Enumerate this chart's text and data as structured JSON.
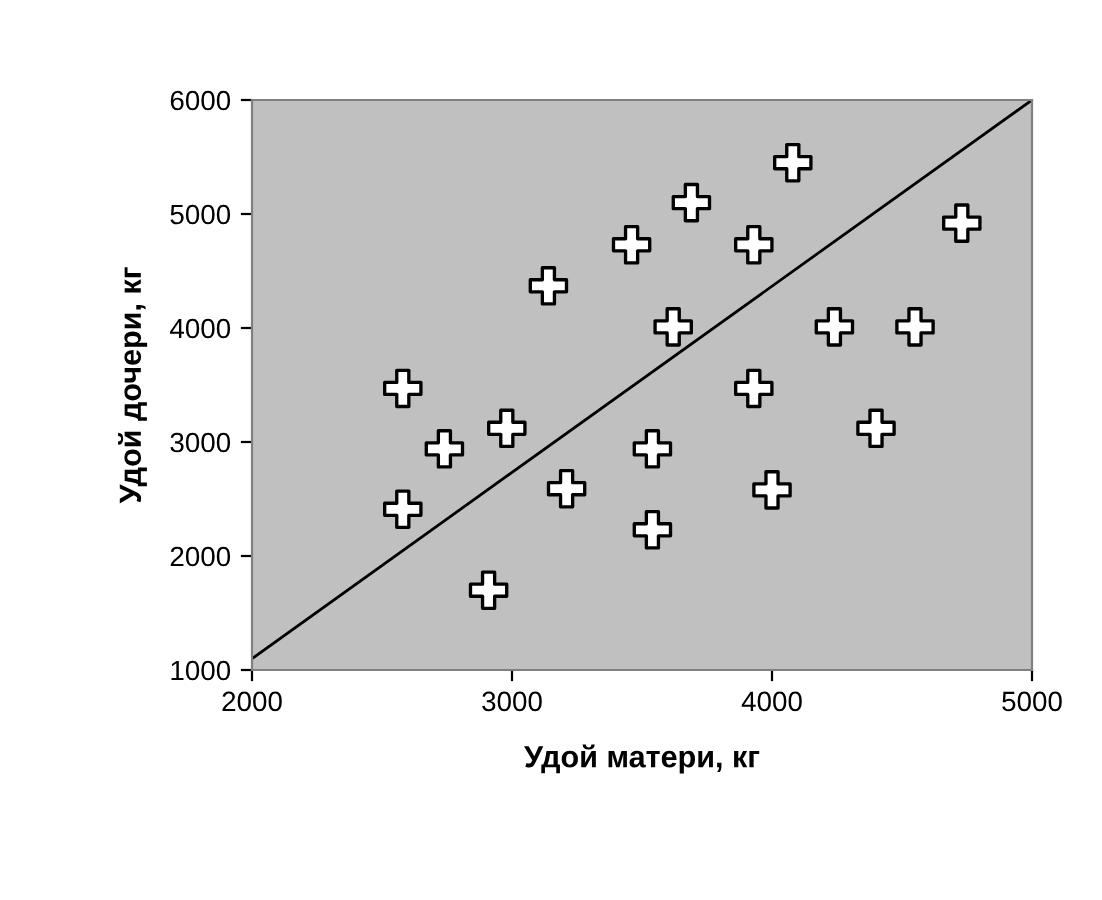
{
  "chart_data": {
    "type": "scatter",
    "xlabel": "Удой матери, кг",
    "ylabel": "Удой дочери, кг",
    "xlim": [
      2000,
      5000
    ],
    "ylim": [
      1000,
      6000
    ],
    "xticks": [
      2000,
      3000,
      4000,
      5000
    ],
    "yticks": [
      1000,
      2000,
      3000,
      4000,
      5000,
      6000
    ],
    "grid": false,
    "legend": false,
    "series": [
      {
        "marker": "cross",
        "color": "#ffffff",
        "x": [
          4080,
          3690,
          3460,
          3930,
          4730,
          3140,
          3620,
          4240,
          4550,
          2580,
          3930,
          2980,
          4400,
          2740,
          3540,
          3210,
          4000,
          2580,
          3540,
          2910
        ],
        "values": [
          5450,
          5100,
          4730,
          4730,
          4920,
          4370,
          4010,
          4010,
          4010,
          3470,
          3470,
          3120,
          3120,
          2940,
          2940,
          2590,
          2580,
          2410,
          2230,
          1700
        ]
      },
      {
        "type": "line",
        "color": "#000000",
        "x": [
          2000,
          5000
        ],
        "values": [
          1100,
          6000
        ]
      }
    ]
  }
}
